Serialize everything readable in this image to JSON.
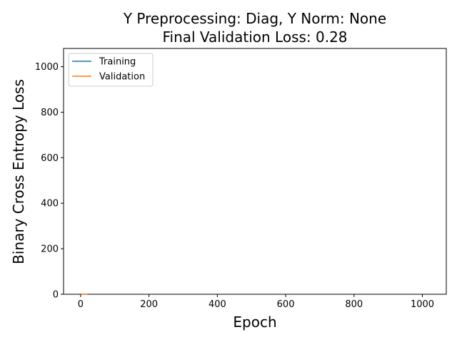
{
  "chart_data": {
    "type": "line",
    "title_lines": [
      "Y Preprocessing: Diag, Y Norm: None",
      "Final Validation Loss: 0.28"
    ],
    "xlabel": "Epoch",
    "ylabel": "Binary Cross Entropy Loss",
    "xlim": [
      -50,
      1070
    ],
    "ylim": [
      0,
      1080
    ],
    "xticks": [
      0,
      200,
      400,
      600,
      800,
      1000
    ],
    "yticks": [
      0,
      200,
      400,
      600,
      800,
      1000
    ],
    "grid": false,
    "legend_position": "top-left",
    "series": [
      {
        "name": "Training",
        "color": "#1f77b4",
        "x": [
          1,
          2,
          3,
          4,
          5,
          6,
          7,
          8,
          9,
          10,
          12,
          14,
          16,
          18,
          20
        ],
        "y": [
          0.69,
          0.62,
          0.55,
          0.5,
          0.46,
          0.43,
          0.4,
          0.38,
          0.36,
          0.34,
          0.32,
          0.3,
          0.29,
          0.28,
          0.27
        ]
      },
      {
        "name": "Validation",
        "color": "#ff7f0e",
        "x": [
          1,
          2,
          3,
          4,
          5,
          6,
          7,
          8,
          9,
          10,
          12,
          14,
          16,
          18,
          20
        ],
        "y": [
          0.68,
          0.6,
          0.54,
          0.49,
          0.45,
          0.42,
          0.39,
          0.37,
          0.35,
          0.33,
          0.31,
          0.3,
          0.29,
          0.285,
          0.28
        ]
      }
    ]
  }
}
